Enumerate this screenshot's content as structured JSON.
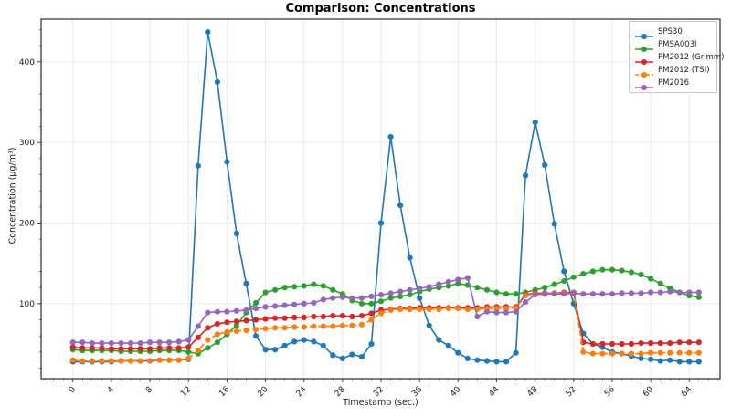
{
  "title": "Comparison: Concentrations",
  "chart_data": {
    "type": "line",
    "title": "Comparison: Concentrations",
    "xlabel": "Timestamp (sec.)",
    "ylabel": "Concentration (µg/m³)",
    "xlim": [
      -3.3,
      67.2
    ],
    "ylim": [
      7,
      453
    ],
    "x_ticks": [
      0,
      4,
      8,
      12,
      16,
      20,
      24,
      28,
      32,
      36,
      40,
      44,
      48,
      52,
      56,
      60,
      64
    ],
    "y_ticks": [
      100,
      200,
      300,
      400
    ],
    "x_minor_step": 1,
    "y_minor_step": 20,
    "grid": true,
    "grid_color": "#e9e9e9",
    "spine_color": "#2b2b2b",
    "tick_label_rotation_deg": 45,
    "legend_position": "upper right",
    "x": [
      0,
      1,
      2,
      3,
      4,
      5,
      6,
      7,
      8,
      9,
      10,
      11,
      12,
      13,
      14,
      15,
      16,
      17,
      18,
      19,
      20,
      21,
      22,
      23,
      24,
      25,
      26,
      27,
      28,
      29,
      30,
      31,
      32,
      33,
      34,
      35,
      36,
      37,
      38,
      39,
      40,
      41,
      42,
      43,
      44,
      45,
      46,
      47,
      48,
      49,
      50,
      51,
      52,
      53,
      54,
      55,
      56,
      57,
      58,
      59,
      60,
      61,
      62,
      63,
      64,
      65
    ],
    "series": [
      {
        "name": "SPS30",
        "color": "#1f77b4",
        "dash": "solid",
        "marker": "circle",
        "values": [
          28,
          28,
          28,
          28,
          28,
          29,
          29,
          29,
          29,
          30,
          30,
          30,
          31,
          271,
          437,
          375,
          276,
          187,
          125,
          60,
          43,
          43,
          48,
          53,
          55,
          53,
          48,
          36,
          32,
          37,
          34,
          50,
          200,
          307,
          222,
          157,
          107,
          73,
          55,
          48,
          39,
          32,
          30,
          29,
          28,
          28,
          39,
          259,
          325,
          272,
          199,
          140,
          100,
          63,
          50,
          46,
          40,
          38,
          35,
          32,
          31,
          29,
          30,
          28,
          28,
          28
        ]
      },
      {
        "name": "PMSA003I",
        "color": "#2ca02c",
        "dash": "solid",
        "marker": "circle",
        "values": [
          43,
          42,
          42,
          42,
          42,
          41,
          41,
          41,
          41,
          42,
          42,
          42,
          40,
          38,
          45,
          52,
          62,
          73,
          89,
          101,
          114,
          117,
          120,
          121,
          122,
          124,
          122,
          117,
          112,
          104,
          100,
          100,
          103,
          107,
          109,
          111,
          115,
          118,
          120,
          122,
          125,
          123,
          120,
          117,
          114,
          112,
          112,
          114,
          117,
          120,
          124,
          128,
          133,
          137,
          140,
          142,
          142,
          141,
          139,
          136,
          131,
          125,
          119,
          114,
          110,
          108
        ]
      },
      {
        "name": "PM2012 (Grimm)",
        "color": "#d62728",
        "dash": "solid",
        "marker": "circle",
        "values": [
          46,
          45,
          45,
          45,
          44,
          44,
          44,
          44,
          44,
          45,
          45,
          45,
          46,
          58,
          70,
          75,
          77,
          78,
          79,
          80,
          81,
          82,
          82,
          83,
          83,
          84,
          84,
          85,
          85,
          84,
          85,
          88,
          92,
          93,
          94,
          94,
          95,
          95,
          95,
          95,
          95,
          95,
          95,
          96,
          96,
          96,
          96,
          111,
          113,
          113,
          113,
          114,
          114,
          52,
          50,
          50,
          50,
          50,
          50,
          51,
          51,
          51,
          51,
          52,
          52,
          52
        ]
      },
      {
        "name": "PM2012 (TSI)",
        "color": "#ff7f0e",
        "dash": "dashed",
        "marker": "circle",
        "values": [
          30,
          29,
          29,
          29,
          29,
          29,
          29,
          29,
          29,
          30,
          30,
          30,
          32,
          42,
          55,
          62,
          65,
          66,
          67,
          68,
          69,
          70,
          70,
          71,
          71,
          72,
          72,
          72,
          73,
          73,
          74,
          80,
          88,
          92,
          93,
          93,
          93,
          93,
          93,
          94,
          94,
          93,
          93,
          94,
          94,
          94,
          95,
          110,
          112,
          112,
          113,
          113,
          114,
          40,
          38,
          38,
          38,
          38,
          38,
          38,
          39,
          39,
          39,
          39,
          39,
          39
        ]
      },
      {
        "name": "PM2016",
        "color": "#9467bd",
        "dash": "solid",
        "marker": "circle",
        "values": [
          52,
          52,
          51,
          51,
          51,
          51,
          51,
          51,
          52,
          52,
          52,
          53,
          55,
          72,
          89,
          90,
          90,
          91,
          92,
          94,
          96,
          97,
          98,
          99,
          100,
          101,
          105,
          107,
          108,
          107,
          107,
          109,
          111,
          113,
          115,
          117,
          119,
          121,
          124,
          127,
          130,
          132,
          84,
          90,
          89,
          89,
          90,
          102,
          111,
          112,
          112,
          112,
          113,
          112,
          112,
          112,
          112,
          113,
          113,
          113,
          114,
          114,
          115,
          114,
          114,
          114
        ]
      }
    ]
  }
}
